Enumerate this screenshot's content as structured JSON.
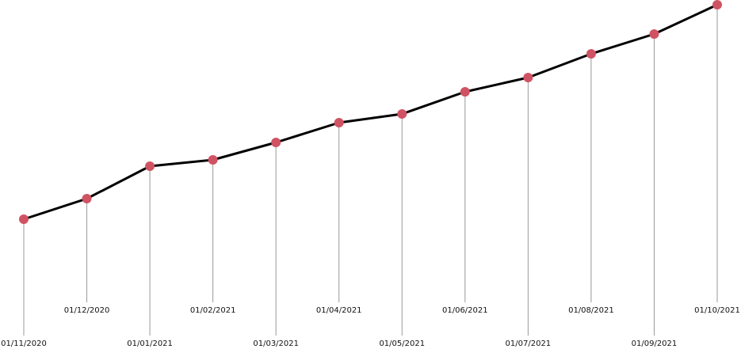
{
  "chart_data": {
    "type": "line",
    "categories": [
      "01/11/2020",
      "01/12/2020",
      "01/01/2021",
      "01/02/2021",
      "01/03/2021",
      "01/04/2021",
      "01/05/2021",
      "01/06/2021",
      "01/07/2021",
      "01/08/2021",
      "01/09/2021",
      "01/10/2021"
    ],
    "values": [
      164,
      190,
      231,
      239,
      261,
      286,
      297,
      325,
      343,
      373,
      398,
      435
    ],
    "color": "#000000",
    "marker_color": "#d05363"
  }
}
